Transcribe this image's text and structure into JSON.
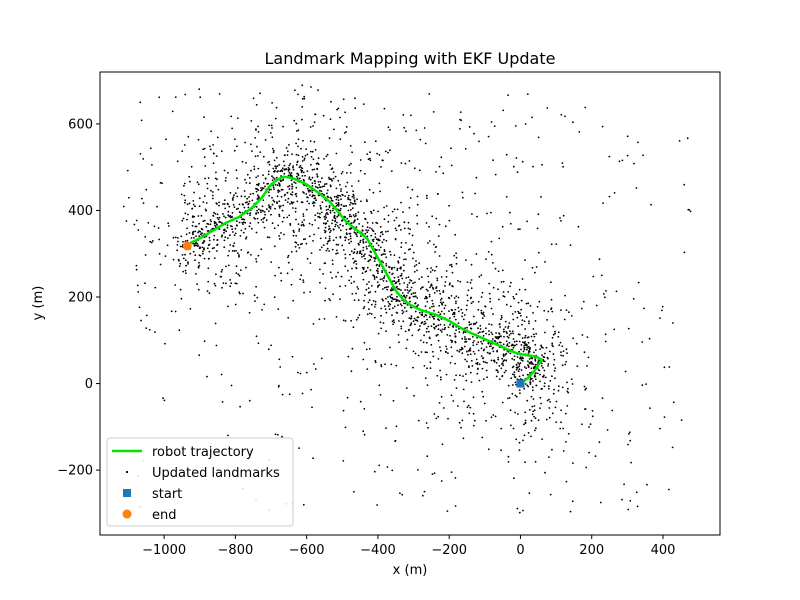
{
  "chart_data": {
    "type": "scatter",
    "title": "Landmark Mapping with EKF Update",
    "xlabel": "x (m)",
    "ylabel": "y (m)",
    "xlim": [
      -1180,
      560
    ],
    "ylim": [
      -350,
      720
    ],
    "xticks": [
      -1000,
      -800,
      -600,
      -400,
      -200,
      0,
      200,
      400
    ],
    "yticks": [
      -200,
      0,
      200,
      400,
      600
    ],
    "grid": false,
    "legend_position": "lower-left",
    "series": [
      {
        "name": "robot trajectory",
        "kind": "line",
        "color": "#00e600",
        "points": [
          [
            0,
            0
          ],
          [
            20,
            12
          ],
          [
            40,
            30
          ],
          [
            60,
            55
          ],
          [
            45,
            62
          ],
          [
            20,
            65
          ],
          [
            -10,
            70
          ],
          [
            -40,
            80
          ],
          [
            -80,
            95
          ],
          [
            -120,
            110
          ],
          [
            -160,
            125
          ],
          [
            -200,
            145
          ],
          [
            -240,
            160
          ],
          [
            -280,
            170
          ],
          [
            -310,
            182
          ],
          [
            -330,
            195
          ],
          [
            -350,
            215
          ],
          [
            -370,
            245
          ],
          [
            -390,
            275
          ],
          [
            -410,
            305
          ],
          [
            -430,
            335
          ],
          [
            -460,
            355
          ],
          [
            -490,
            375
          ],
          [
            -510,
            395
          ],
          [
            -535,
            420
          ],
          [
            -565,
            440
          ],
          [
            -600,
            460
          ],
          [
            -640,
            475
          ],
          [
            -665,
            478
          ],
          [
            -685,
            470
          ],
          [
            -705,
            455
          ],
          [
            -725,
            430
          ],
          [
            -755,
            405
          ],
          [
            -790,
            385
          ],
          [
            -825,
            372
          ],
          [
            -860,
            355
          ],
          [
            -895,
            338
          ],
          [
            -925,
            325
          ],
          [
            -935,
            318
          ]
        ]
      },
      {
        "name": "Updated landmarks",
        "kind": "scatter",
        "color": "#000000",
        "marker": "dot",
        "count": 3000
      }
    ],
    "markers": [
      {
        "name": "start",
        "shape": "square",
        "color": "#1f77b4",
        "x": 0,
        "y": 0
      },
      {
        "name": "end",
        "shape": "circle",
        "color": "#ff7f0e",
        "x": -935,
        "y": 318
      }
    ]
  }
}
